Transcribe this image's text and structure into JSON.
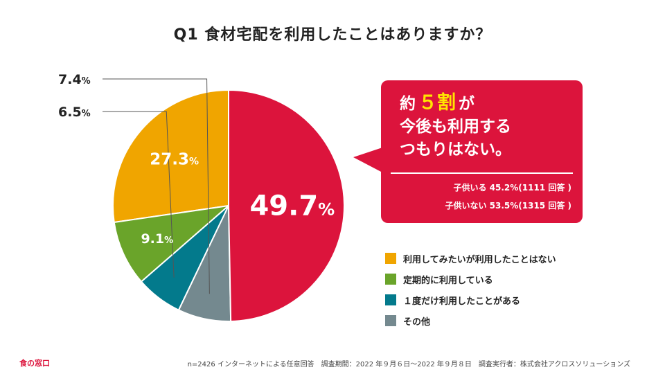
{
  "title": "Q1 食材宅配を利用したことはありますか？",
  "chart_data": {
    "type": "pie",
    "title": "Q1 食材宅配を利用したことはありますか？",
    "unit": "%",
    "slices": [
      {
        "label": "利用してみたいが利用したことはない",
        "value": 27.3,
        "display": "27.3",
        "color": "#f0a500"
      },
      {
        "label": "定期的に利用している",
        "value": 9.1,
        "display": "9.1",
        "color": "#6aa42a"
      },
      {
        "label": "１度だけ利用したことがある",
        "value": 6.5,
        "display": "6.5",
        "color": "#037a8c"
      },
      {
        "label": "その他",
        "value": 7.4,
        "display": "7.4",
        "color": "#74898f"
      },
      {
        "label": "今後も利用するつもりはない",
        "value": 49.7,
        "display": "49.7",
        "color": "#dc143c"
      }
    ],
    "legend": [
      {
        "label": "利用してみたいが利用したことはない",
        "color": "#f0a500"
      },
      {
        "label": "定期的に利用している",
        "color": "#6aa42a"
      },
      {
        "label": "１度だけ利用したことがある",
        "color": "#037a8c"
      },
      {
        "label": "その他",
        "color": "#74898f"
      }
    ]
  },
  "callout": {
    "prefix": "約",
    "highlight": "５割",
    "suffix": "が",
    "line2": "今後も利用する",
    "line3": "つもりはない。",
    "sub1": "子供いる 45.2%(1111 回答 )",
    "sub2": "子供いない 53.5%(1315 回答 )"
  },
  "footer": {
    "logo": "食の窓口",
    "note": "n=2426 インターネットによる任意回答　調査期間：2022 年９月６日～2022 年９月８日　調査実行者：株式会社アクロスソリューションズ"
  }
}
